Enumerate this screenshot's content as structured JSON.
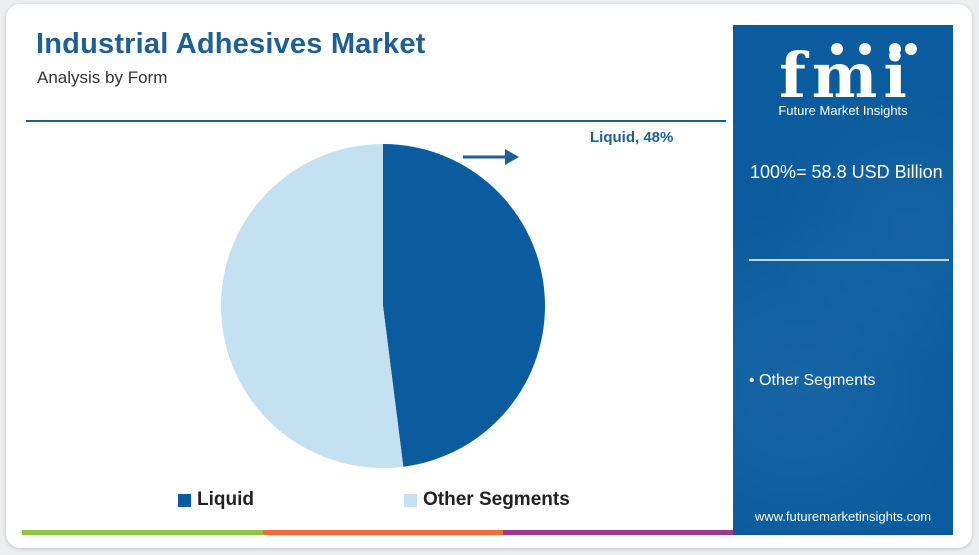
{
  "header": {
    "title": "Industrial Adhesives Market",
    "subtitle": "Analysis by Form"
  },
  "sidebar": {
    "logo_text": "fmi",
    "logo_tagline": "Future Market Insights",
    "total_label": "100%= 58.8 USD Billion",
    "bullet_label": "• Other Segments",
    "website": "www.futuremarketinsights.com"
  },
  "chart_data": {
    "type": "pie",
    "title": "Industrial Adhesives Market",
    "subtitle": "Analysis by Form",
    "slices": [
      {
        "name": "Liquid",
        "value": 48,
        "color": "#0b5c9e",
        "label": "Liquid, 48%"
      },
      {
        "name": "Other Segments",
        "value": 52,
        "color": "#c4e1f2"
      }
    ],
    "legend": {
      "position": "bottom",
      "entries": [
        "Liquid",
        "Other Segments"
      ]
    }
  },
  "colors": {
    "brand": "#1d5f98",
    "sidebar": "#0b5c9e",
    "bottom_bar": [
      "#8cc63f",
      "#f26b3a",
      "#9b3a8d",
      "#0b5c9e"
    ]
  }
}
